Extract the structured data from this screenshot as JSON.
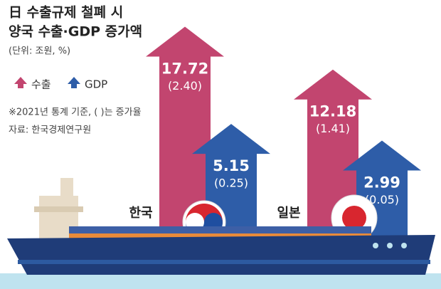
{
  "chart_data": {
    "type": "arrow-bar",
    "title_lines": [
      "日 수출규제 철폐 시",
      "양국 수출·GDP 증가액"
    ],
    "subtitle": "(단위: 조원, %)",
    "note": "※2021년 통계 기준, ( )는 증가율",
    "source": "자료: 한국경제연구원",
    "categories": [
      "한국",
      "일본"
    ],
    "series": [
      {
        "name": "수출",
        "color": "#c2456f",
        "values": [
          17.72,
          12.18
        ],
        "share_values": [
          2.4,
          1.41
        ],
        "share_labels": [
          "(2.40)",
          "(1.41)"
        ]
      },
      {
        "name": "GDP",
        "color": "#2e5da8",
        "values": [
          5.15,
          2.99
        ],
        "share_values": [
          0.25,
          0.05
        ],
        "share_labels": [
          "(0.25)",
          "(0.05)"
        ]
      }
    ]
  }
}
